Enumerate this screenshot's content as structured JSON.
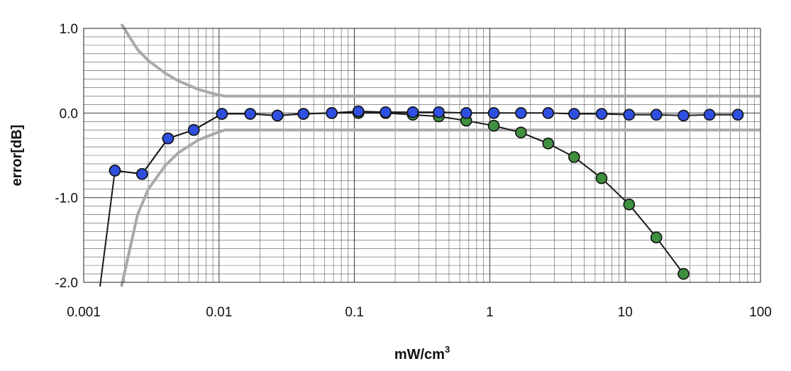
{
  "chart_data": {
    "type": "line",
    "xlabel": "mW/cm",
    "xlabel_sup": "3",
    "ylabel": "error[dB]",
    "xscale": "log",
    "xlim": [
      0.001,
      100
    ],
    "ylim": [
      -2.0,
      1.0
    ],
    "x_ticks": [
      0.001,
      0.01,
      0.1,
      1,
      10,
      100
    ],
    "x_tick_labels": [
      "0.001",
      "0.01",
      "0.1",
      "1",
      "10",
      "100"
    ],
    "y_ticks": [
      1.0,
      0.0,
      -1.0,
      -2.0
    ],
    "y_tick_labels": [
      "1.0",
      "0.0",
      "-1.0",
      "-2.0"
    ],
    "grid": true,
    "colors": {
      "blue_marker": "#2f4fe0",
      "green_marker": "#3f8f3f",
      "limit_line": "#a9a9a9",
      "data_line": "#1a1a1a"
    },
    "series": [
      {
        "style": "green-markers",
        "x": [
          0.0017,
          0.0027,
          0.0042,
          0.0065,
          0.0105,
          0.017,
          0.027,
          0.042,
          0.068,
          0.107,
          0.17,
          0.27,
          0.42,
          0.67,
          1.07,
          1.7,
          2.7,
          4.2,
          6.7,
          10.7,
          17,
          27
        ],
        "y": [
          -0.68,
          -0.72,
          -0.3,
          -0.2,
          -0.01,
          -0.01,
          -0.03,
          -0.01,
          0.0,
          0.0,
          0.0,
          -0.02,
          -0.04,
          -0.09,
          -0.15,
          -0.23,
          -0.36,
          -0.52,
          -0.77,
          -1.08,
          -1.47,
          -1.9
        ]
      },
      {
        "style": "blue-markers",
        "x": [
          0.0017,
          0.0027,
          0.0042,
          0.0065,
          0.0105,
          0.017,
          0.027,
          0.042,
          0.068,
          0.107,
          0.17,
          0.27,
          0.42,
          0.67,
          1.07,
          1.7,
          2.7,
          4.2,
          6.7,
          10.7,
          17,
          27,
          42,
          68
        ],
        "y": [
          -0.68,
          -0.72,
          -0.3,
          -0.2,
          -0.01,
          -0.01,
          -0.03,
          -0.01,
          0.0,
          0.02,
          0.01,
          0.01,
          0.01,
          0.0,
          0.0,
          0.0,
          0.0,
          -0.01,
          -0.01,
          -0.02,
          -0.02,
          -0.03,
          -0.02,
          -0.02
        ]
      },
      {
        "style": "upper-limit",
        "x": [
          0.0019,
          0.0025,
          0.003,
          0.004,
          0.005,
          0.007,
          0.009,
          0.011,
          100
        ],
        "y": [
          1.05,
          0.75,
          0.62,
          0.47,
          0.38,
          0.28,
          0.23,
          0.2,
          0.2
        ]
      },
      {
        "style": "lower-limit",
        "x": [
          0.0019,
          0.0025,
          0.003,
          0.004,
          0.005,
          0.007,
          0.009,
          0.011,
          100
        ],
        "y": [
          -2.05,
          -1.2,
          -0.9,
          -0.62,
          -0.47,
          -0.32,
          -0.25,
          -0.2,
          -0.2
        ]
      },
      {
        "style": "lead-in",
        "x": [
          0.00132,
          0.0017
        ],
        "y": [
          -2.05,
          -0.68
        ]
      }
    ]
  }
}
